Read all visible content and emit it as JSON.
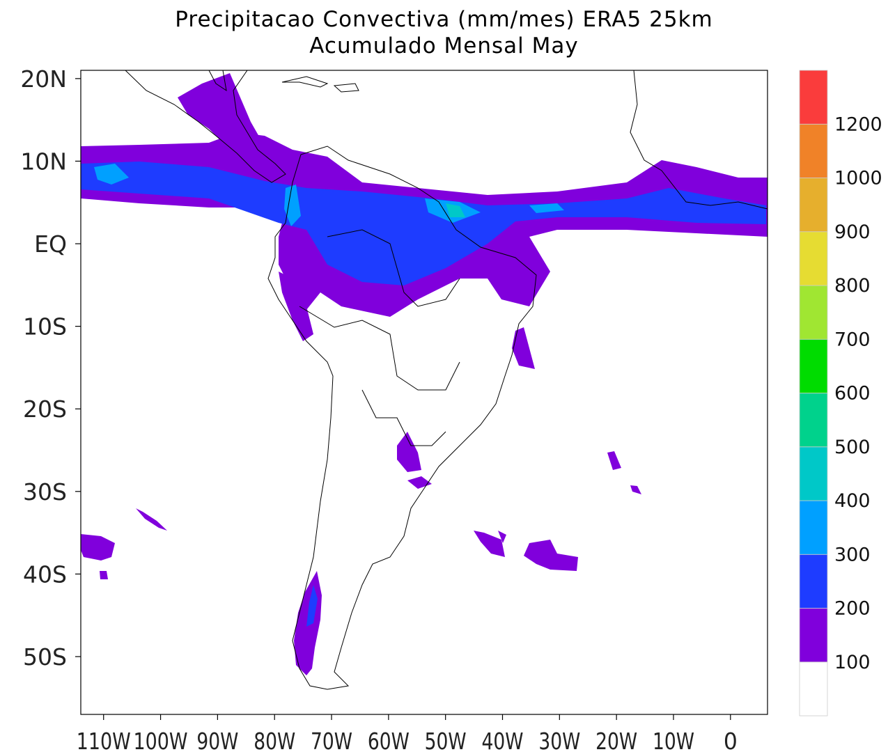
{
  "title": "Precipitacao Convectiva (mm/mes) ERA5  25km",
  "subtitle": "Acumulado Mensal May",
  "lat_labels": [
    "20N",
    "10N",
    "EQ",
    "10S",
    "20S",
    "30S",
    "40S",
    "50S"
  ],
  "lat_values": [
    20,
    10,
    0,
    -10,
    -20,
    -30,
    -40,
    -50
  ],
  "lon_labels": [
    "110W",
    "100W",
    "90W",
    "80W",
    "70W",
    "60W",
    "50W",
    "40W",
    "30W",
    "20W",
    "10W",
    "0"
  ],
  "lon_values": [
    -110,
    -100,
    -90,
    -80,
    -70,
    -60,
    -50,
    -40,
    -30,
    -20,
    -10,
    0
  ],
  "extent": {
    "lon": [
      -114,
      6.5
    ],
    "lat": [
      -57,
      21
    ]
  },
  "colorbar": {
    "labels": [
      "100",
      "200",
      "300",
      "400",
      "500",
      "600",
      "700",
      "800",
      "900",
      "1000",
      "1200"
    ],
    "colors": [
      "#ffffff",
      "#8000dc",
      "#1e3cff",
      "#00a0ff",
      "#00c8c8",
      "#00d28c",
      "#00dc00",
      "#a0e632",
      "#e6dc32",
      "#e6af2d",
      "#f08228",
      "#fa3c3c"
    ]
  },
  "colors": {
    "purple": "#8000dc",
    "blue": "#1e3cff",
    "lightblue": "#00a0ff",
    "cyan": "#00c8c8",
    "green": "#00d28c",
    "coast": "#000000"
  }
}
